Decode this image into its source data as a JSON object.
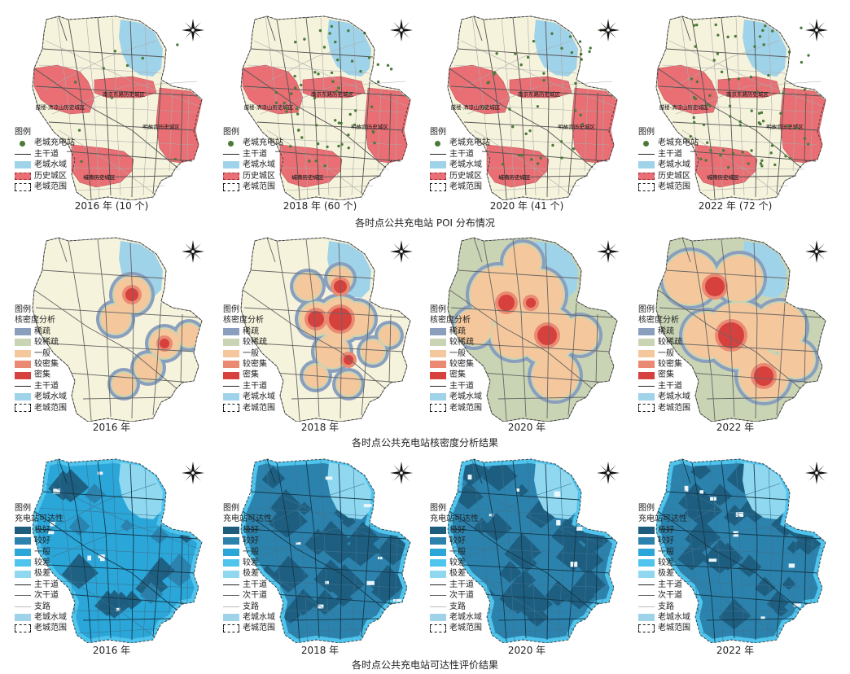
{
  "rows": [
    {
      "caption": "各时点公共充电站 POI 分布情况",
      "panels": [
        {
          "year_label": "2016 年 (10 个)"
        },
        {
          "year_label": "2018 年 (60 个)"
        },
        {
          "year_label": "2020 年 (41 个)"
        },
        {
          "year_label": "2022 年 (72 个)"
        }
      ],
      "legend": {
        "title": "图例",
        "items": [
          "老城充电站",
          "主干道",
          "老城水域",
          "历史城区",
          "老城范围"
        ]
      },
      "district_labels": [
        "鼓楼-清凉山历史城区",
        "南京东路历史城区",
        "明故宫历史城区",
        "城南历史城区"
      ]
    },
    {
      "caption": "各时点公共充电站核密度分析结果",
      "panels": [
        {
          "year_label": "2016 年"
        },
        {
          "year_label": "2018 年"
        },
        {
          "year_label": "2020 年"
        },
        {
          "year_label": "2022 年"
        }
      ],
      "legend": {
        "title": "图例",
        "subtitle": "核密度分析",
        "items": [
          "稀疏",
          "较稀疏",
          "一般",
          "较密集",
          "密集",
          "主干道",
          "老城水域",
          "老城范围"
        ]
      }
    },
    {
      "caption": "各时点公共充电站可达性评价结果",
      "panels": [
        {
          "year_label": "2016 年"
        },
        {
          "year_label": "2018 年"
        },
        {
          "year_label": "2020 年"
        },
        {
          "year_label": "2022 年"
        }
      ],
      "legend": {
        "title": "图例",
        "subtitle": "充电站可达性",
        "items": [
          "极好",
          "较好",
          "一般",
          "较差",
          "极差",
          "主干道",
          "次干道",
          "支路",
          "老城水域",
          "老城范围"
        ]
      }
    }
  ],
  "colors": {
    "base": "#f6f3dc",
    "water": "#9fd3ea",
    "historic": "#e96f74",
    "station": "#4a7a3a",
    "kde": {
      "sparse": "#8a9ebd",
      "less_sparse": "#c9d4b4",
      "medium": "#f5c79c",
      "dense_ish": "#ea8a72",
      "dense": "#d6413e"
    },
    "access": {
      "best": "#1e5d7e",
      "good": "#2b82ad",
      "medium": "#2aa6d9",
      "poor": "#4fc4ec",
      "worst": "#8fd8f0"
    }
  },
  "compass_icon": "north-arrow-compass-icon",
  "station_counts": [
    10,
    60,
    41,
    72
  ]
}
